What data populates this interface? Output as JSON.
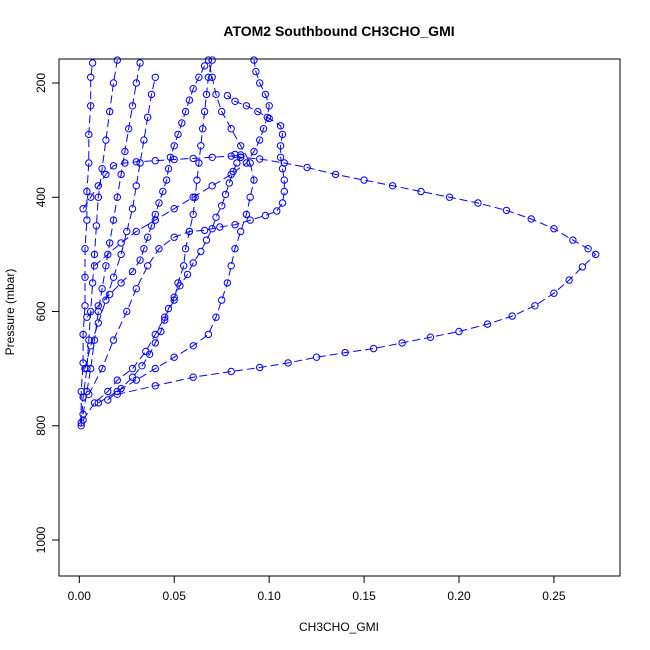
{
  "chart_data": {
    "type": "scatter",
    "title": "ATOM2 Southbound CH3CHO_GMI",
    "xlabel": "CH3CHO_GMI",
    "ylabel": "Pressure (mbar)",
    "xlim": [
      -0.0107,
      0.2848
    ],
    "ylim": [
      1063,
      158
    ],
    "y_reversed": true,
    "x_ticks": [
      0.0,
      0.05,
      0.1,
      0.15,
      0.2,
      0.25
    ],
    "x_tick_labels": [
      "0.00",
      "0.05",
      "0.10",
      "0.15",
      "0.20",
      "0.25"
    ],
    "y_ticks": [
      200,
      400,
      600,
      800,
      1000
    ],
    "y_tick_labels": [
      "200",
      "400",
      "600",
      "800",
      "1000"
    ],
    "grid": false,
    "marker": "open-circle",
    "colors": {
      "series": "#0000ff",
      "axis": "#000000"
    },
    "series": [
      {
        "points": [
          [
            0.001,
            800
          ],
          [
            0.002,
            750
          ],
          [
            0.004,
            700
          ],
          [
            0.005,
            650
          ],
          [
            0.006,
            600
          ],
          [
            0.007,
            550
          ],
          [
            0.008,
            500
          ],
          [
            0.009,
            450
          ],
          [
            0.01,
            400
          ],
          [
            0.012,
            350
          ],
          [
            0.014,
            300
          ],
          [
            0.016,
            250
          ],
          [
            0.018,
            200
          ],
          [
            0.02,
            160
          ]
        ]
      },
      {
        "points": [
          [
            0.002,
            790
          ],
          [
            0.008,
            760
          ],
          [
            0.015,
            740
          ],
          [
            0.02,
            720
          ],
          [
            0.028,
            700
          ],
          [
            0.035,
            670
          ],
          [
            0.04,
            640
          ],
          [
            0.045,
            610
          ],
          [
            0.05,
            580
          ],
          [
            0.052,
            550
          ],
          [
            0.055,
            520
          ],
          [
            0.056,
            490
          ],
          [
            0.058,
            460
          ],
          [
            0.06,
            430
          ],
          [
            0.061,
            400
          ],
          [
            0.062,
            370
          ],
          [
            0.063,
            340
          ],
          [
            0.064,
            310
          ],
          [
            0.065,
            280
          ],
          [
            0.066,
            250
          ],
          [
            0.067,
            220
          ],
          [
            0.068,
            190
          ],
          [
            0.07,
            160
          ]
        ]
      },
      {
        "points": [
          [
            0.01,
            760
          ],
          [
            0.02,
            740
          ],
          [
            0.03,
            720
          ],
          [
            0.04,
            700
          ],
          [
            0.05,
            680
          ],
          [
            0.06,
            660
          ],
          [
            0.068,
            640
          ],
          [
            0.072,
            610
          ],
          [
            0.075,
            580
          ],
          [
            0.078,
            550
          ],
          [
            0.08,
            520
          ],
          [
            0.082,
            490
          ],
          [
            0.085,
            460
          ],
          [
            0.088,
            430
          ],
          [
            0.09,
            400
          ],
          [
            0.092,
            370
          ],
          [
            0.09,
            340
          ],
          [
            0.085,
            310
          ],
          [
            0.08,
            280
          ],
          [
            0.075,
            250
          ],
          [
            0.072,
            220
          ],
          [
            0.07,
            190
          ],
          [
            0.068,
            160
          ]
        ]
      },
      {
        "points": [
          [
            0.02,
            745
          ],
          [
            0.04,
            730
          ],
          [
            0.06,
            715
          ],
          [
            0.08,
            705
          ],
          [
            0.095,
            698
          ],
          [
            0.11,
            690
          ],
          [
            0.125,
            680
          ],
          [
            0.14,
            672
          ],
          [
            0.155,
            665
          ],
          [
            0.17,
            655
          ],
          [
            0.185,
            645
          ],
          [
            0.2,
            635
          ],
          [
            0.215,
            622
          ],
          [
            0.228,
            608
          ],
          [
            0.24,
            590
          ],
          [
            0.25,
            568
          ],
          [
            0.258,
            545
          ],
          [
            0.265,
            522
          ],
          [
            0.272,
            500
          ],
          [
            0.268,
            490
          ],
          [
            0.26,
            475
          ],
          [
            0.25,
            455
          ],
          [
            0.238,
            438
          ],
          [
            0.225,
            423
          ],
          [
            0.21,
            410
          ],
          [
            0.195,
            400
          ],
          [
            0.18,
            390
          ],
          [
            0.165,
            380
          ],
          [
            0.15,
            370
          ],
          [
            0.135,
            360
          ],
          [
            0.12,
            348
          ],
          [
            0.108,
            340
          ],
          [
            0.095,
            333
          ],
          [
            0.085,
            330
          ],
          [
            0.082,
            325
          ]
        ]
      },
      {
        "points": [
          [
            0.005,
            745
          ],
          [
            0.012,
            700
          ],
          [
            0.018,
            650
          ],
          [
            0.025,
            600
          ],
          [
            0.03,
            560
          ],
          [
            0.036,
            520
          ],
          [
            0.042,
            490
          ],
          [
            0.05,
            470
          ],
          [
            0.058,
            460
          ],
          [
            0.066,
            458
          ],
          [
            0.074,
            452
          ],
          [
            0.082,
            448
          ],
          [
            0.09,
            440
          ],
          [
            0.098,
            432
          ],
          [
            0.104,
            424
          ],
          [
            0.107,
            410
          ],
          [
            0.108,
            390
          ],
          [
            0.108,
            370
          ],
          [
            0.107,
            350
          ],
          [
            0.106,
            330
          ],
          [
            0.106,
            310
          ],
          [
            0.107,
            290
          ],
          [
            0.106,
            275
          ],
          [
            0.1,
            262
          ],
          [
            0.094,
            250
          ],
          [
            0.088,
            240
          ],
          [
            0.082,
            232
          ],
          [
            0.078,
            222
          ]
        ]
      },
      {
        "points": [
          [
            0.008,
            520
          ],
          [
            0.015,
            500
          ],
          [
            0.022,
            480
          ],
          [
            0.03,
            460
          ],
          [
            0.04,
            440
          ],
          [
            0.05,
            420
          ],
          [
            0.06,
            400
          ],
          [
            0.07,
            380
          ],
          [
            0.08,
            360
          ],
          [
            0.088,
            340
          ],
          [
            0.092,
            320
          ],
          [
            0.095,
            300
          ],
          [
            0.097,
            280
          ],
          [
            0.099,
            260
          ],
          [
            0.1,
            240
          ],
          [
            0.098,
            220
          ],
          [
            0.095,
            200
          ],
          [
            0.093,
            180
          ],
          [
            0.092,
            160
          ]
        ]
      },
      {
        "points": [
          [
            0.004,
            610
          ],
          [
            0.01,
            590
          ],
          [
            0.016,
            570
          ],
          [
            0.022,
            550
          ],
          [
            0.028,
            530
          ],
          [
            0.032,
            510
          ],
          [
            0.034,
            490
          ],
          [
            0.036,
            470
          ],
          [
            0.038,
            450
          ],
          [
            0.04,
            430
          ],
          [
            0.042,
            410
          ],
          [
            0.044,
            390
          ],
          [
            0.046,
            370
          ],
          [
            0.047,
            350
          ],
          [
            0.048,
            330
          ],
          [
            0.05,
            310
          ],
          [
            0.052,
            290
          ],
          [
            0.054,
            270
          ],
          [
            0.056,
            250
          ],
          [
            0.058,
            230
          ],
          [
            0.06,
            210
          ],
          [
            0.063,
            190
          ],
          [
            0.066,
            170
          ]
        ]
      },
      {
        "points": [
          [
            0.003,
            700
          ],
          [
            0.006,
            660
          ],
          [
            0.01,
            620
          ],
          [
            0.014,
            580
          ],
          [
            0.018,
            540
          ],
          [
            0.022,
            500
          ],
          [
            0.025,
            460
          ],
          [
            0.028,
            420
          ],
          [
            0.03,
            380
          ],
          [
            0.032,
            340
          ],
          [
            0.034,
            300
          ],
          [
            0.036,
            260
          ],
          [
            0.038,
            220
          ],
          [
            0.04,
            190
          ]
        ]
      },
      {
        "points": [
          [
            0.002,
            780
          ],
          [
            0.004,
            740
          ],
          [
            0.006,
            700
          ],
          [
            0.008,
            650
          ],
          [
            0.01,
            600
          ],
          [
            0.012,
            560
          ],
          [
            0.014,
            520
          ],
          [
            0.016,
            480
          ],
          [
            0.018,
            440
          ],
          [
            0.02,
            400
          ],
          [
            0.022,
            360
          ],
          [
            0.024,
            320
          ],
          [
            0.026,
            280
          ],
          [
            0.028,
            240
          ],
          [
            0.03,
            200
          ],
          [
            0.032,
            165
          ]
        ]
      },
      {
        "points": [
          [
            0.001,
            795
          ],
          [
            0.001,
            740
          ],
          [
            0.002,
            690
          ],
          [
            0.002,
            640
          ],
          [
            0.003,
            590
          ],
          [
            0.003,
            540
          ],
          [
            0.003,
            490
          ],
          [
            0.004,
            440
          ],
          [
            0.004,
            390
          ],
          [
            0.005,
            340
          ],
          [
            0.005,
            290
          ],
          [
            0.006,
            240
          ],
          [
            0.006,
            190
          ],
          [
            0.007,
            165
          ]
        ]
      },
      {
        "points": [
          [
            0.015,
            755
          ],
          [
            0.022,
            735
          ],
          [
            0.028,
            715
          ],
          [
            0.033,
            695
          ],
          [
            0.037,
            675
          ],
          [
            0.04,
            655
          ],
          [
            0.043,
            635
          ],
          [
            0.045,
            615
          ],
          [
            0.047,
            595
          ],
          [
            0.05,
            575
          ],
          [
            0.053,
            555
          ],
          [
            0.057,
            535
          ],
          [
            0.06,
            515
          ],
          [
            0.064,
            495
          ],
          [
            0.067,
            475
          ],
          [
            0.07,
            455
          ],
          [
            0.072,
            435
          ],
          [
            0.075,
            415
          ],
          [
            0.077,
            395
          ],
          [
            0.079,
            375
          ],
          [
            0.081,
            355
          ],
          [
            0.083,
            340
          ],
          [
            0.085,
            330
          ]
        ]
      },
      {
        "points": [
          [
            0.002,
            420
          ],
          [
            0.006,
            400
          ],
          [
            0.01,
            380
          ],
          [
            0.014,
            360
          ],
          [
            0.018,
            345
          ],
          [
            0.024,
            340
          ],
          [
            0.03,
            338
          ],
          [
            0.04,
            336
          ],
          [
            0.05,
            334
          ],
          [
            0.06,
            332
          ],
          [
            0.07,
            330
          ],
          [
            0.08,
            328
          ],
          [
            0.085,
            326
          ]
        ]
      }
    ]
  }
}
